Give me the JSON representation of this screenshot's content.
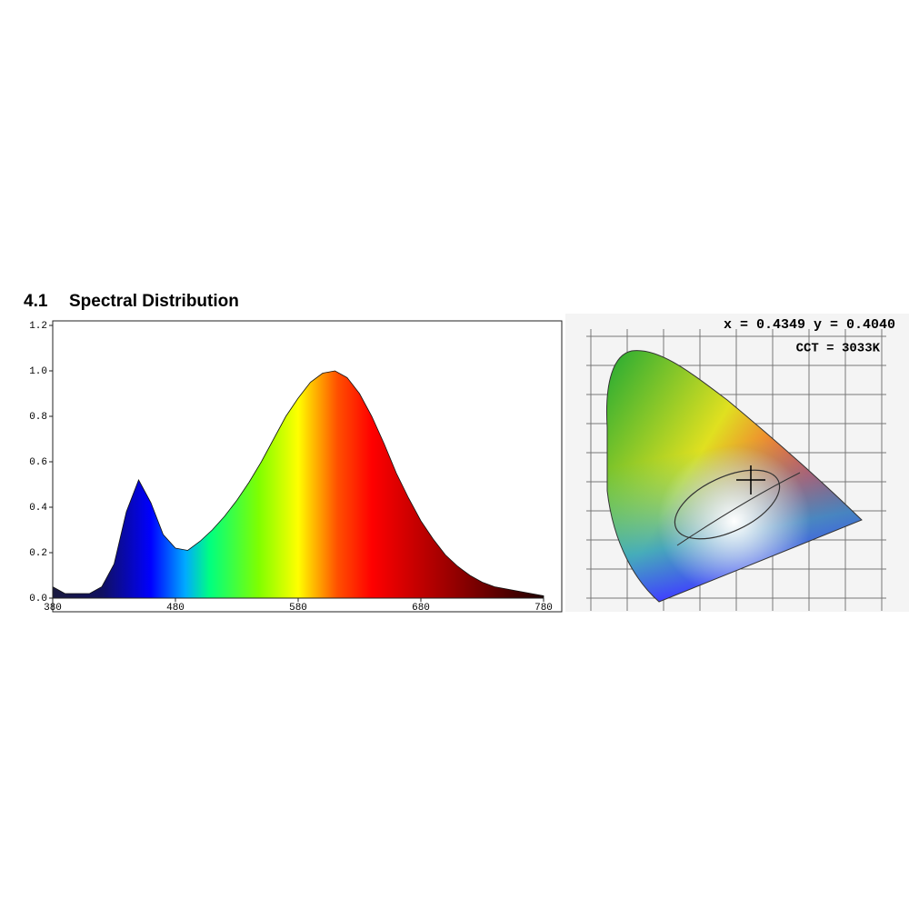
{
  "heading": {
    "number": "4.1",
    "title": "Spectral Distribution"
  },
  "chart_data": {
    "type": "area",
    "x": [
      380,
      390,
      400,
      410,
      420,
      430,
      440,
      450,
      460,
      470,
      480,
      490,
      500,
      510,
      520,
      530,
      540,
      550,
      560,
      570,
      580,
      590,
      600,
      610,
      620,
      630,
      640,
      650,
      660,
      670,
      680,
      690,
      700,
      710,
      720,
      730,
      740,
      750,
      760,
      770,
      780
    ],
    "values": [
      0.05,
      0.02,
      0.02,
      0.02,
      0.05,
      0.15,
      0.38,
      0.52,
      0.42,
      0.28,
      0.22,
      0.21,
      0.25,
      0.3,
      0.36,
      0.43,
      0.51,
      0.6,
      0.7,
      0.8,
      0.88,
      0.95,
      0.99,
      1.0,
      0.97,
      0.9,
      0.8,
      0.68,
      0.55,
      0.44,
      0.34,
      0.26,
      0.19,
      0.14,
      0.1,
      0.07,
      0.05,
      0.04,
      0.03,
      0.02,
      0.01
    ],
    "xlim": [
      380,
      780
    ],
    "xticks": [
      380,
      480,
      580,
      680,
      780
    ],
    "ylim": [
      0,
      1.2
    ],
    "yticks": [
      {
        "value": 0,
        "label": "0.0"
      },
      {
        "value": 0.2,
        "label": "0.2"
      },
      {
        "value": 0.4,
        "label": "0.4"
      },
      {
        "value": 0.6,
        "label": "0.6"
      },
      {
        "value": 0.8,
        "label": "0.8"
      },
      {
        "value": 1.0,
        "label": "1.0"
      },
      {
        "value": 1.2,
        "label": "1.2"
      }
    ]
  },
  "cie": {
    "coordinates": "x = 0.4349 y = 0.4040",
    "cct": "CCT = 3033K"
  }
}
